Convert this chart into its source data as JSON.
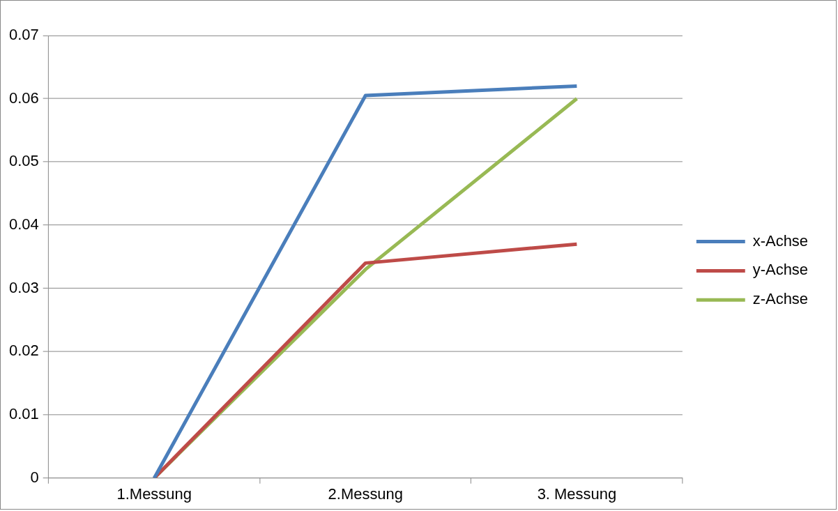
{
  "chart_data": {
    "type": "line",
    "categories": [
      "1.Messung",
      "2.Messung",
      "3. Messung"
    ],
    "series": [
      {
        "name": "x-Achse",
        "color": "#4a7ebb",
        "values": [
          0,
          0.0605,
          0.062
        ]
      },
      {
        "name": "y-Achse",
        "color": "#be4b48",
        "values": [
          0,
          0.034,
          0.037
        ]
      },
      {
        "name": "z-Achse",
        "color": "#98b954",
        "values": [
          0,
          0.033,
          0.06
        ]
      }
    ],
    "ylim": [
      0,
      0.07
    ],
    "yticks": [
      0,
      0.01,
      0.02,
      0.03,
      0.04,
      0.05,
      0.06,
      0.07
    ],
    "grid": "y",
    "legend": "right"
  }
}
